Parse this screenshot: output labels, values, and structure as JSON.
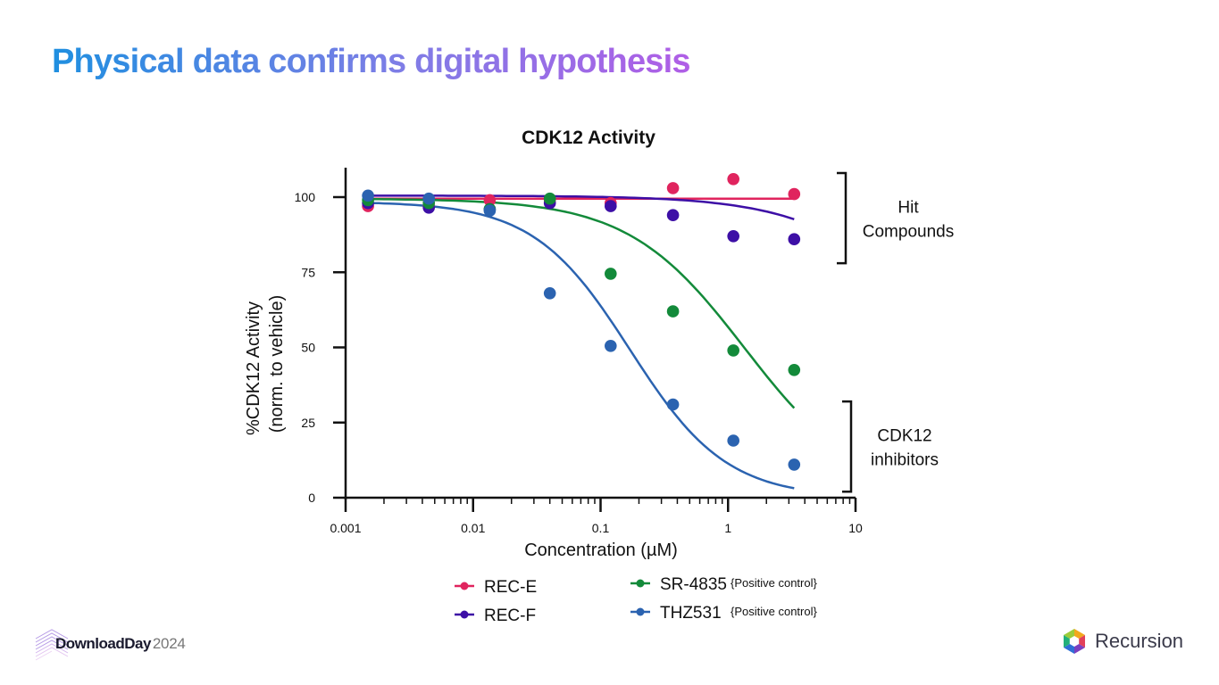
{
  "slide": {
    "title": "Physical data confirms digital hypothesis",
    "footer_left_brand": "DownloadDay",
    "footer_left_year": "2024",
    "footer_right_brand": "Recursion"
  },
  "chart_data": {
    "type": "scatter",
    "title": "CDK12 Activity",
    "xlabel": "Concentration (µM)",
    "ylabel_line1": "%CDK12 Activity",
    "ylabel_line2": "(norm. to vehicle)",
    "xscale": "log",
    "xlim": [
      0.001,
      10
    ],
    "ylim": [
      0,
      110
    ],
    "xticks": [
      0.001,
      0.01,
      0.1,
      1,
      10
    ],
    "xtick_labels": [
      "0.001",
      "0.01",
      "0.1",
      "1",
      "10"
    ],
    "yticks": [
      0,
      25,
      50,
      75,
      100
    ],
    "ytick_labels": [
      "0",
      "25",
      "50",
      "75",
      "100"
    ],
    "x": [
      0.0015,
      0.0045,
      0.0135,
      0.04,
      0.12,
      0.37,
      1.1,
      3.3
    ],
    "series": [
      {
        "name": "REC-E",
        "note": "",
        "color": "#e0245e",
        "values": [
          97,
          97,
          99,
          99,
          98,
          103,
          106,
          101
        ],
        "fit": {
          "top": 99.5,
          "bottom": 99.5,
          "ic50": 1000,
          "hill": 1
        }
      },
      {
        "name": "REC-F",
        "note": "",
        "color": "#3d0fa6",
        "values": [
          98,
          96.5,
          96,
          98,
          97,
          94,
          87,
          86
        ],
        "fit": {
          "top": 100.5,
          "bottom": 0,
          "ic50": 60,
          "hill": 0.85
        }
      },
      {
        "name": "SR-4835",
        "note": "{Positive control}",
        "color": "#138a3a",
        "values": [
          99,
          98,
          96,
          99.5,
          74.5,
          62,
          49,
          42.5
        ],
        "fit": {
          "top": 99.5,
          "bottom": 0,
          "ic50": 1.35,
          "hill": 0.95
        }
      },
      {
        "name": "THZ531",
        "note": "{Positive control}",
        "color": "#2b63b0",
        "values": [
          100.5,
          99.5,
          95.5,
          68,
          50.5,
          31,
          19,
          11
        ],
        "fit": {
          "top": 98.5,
          "bottom": 0,
          "ic50": 0.17,
          "hill": 1.15
        }
      }
    ],
    "annotations": [
      {
        "label_lines": [
          "Hit",
          "Compounds"
        ],
        "y_range": [
          78,
          108
        ]
      },
      {
        "label_lines": [
          "CDK12",
          "inhibitors"
        ],
        "y_range": [
          2,
          32
        ]
      }
    ]
  }
}
